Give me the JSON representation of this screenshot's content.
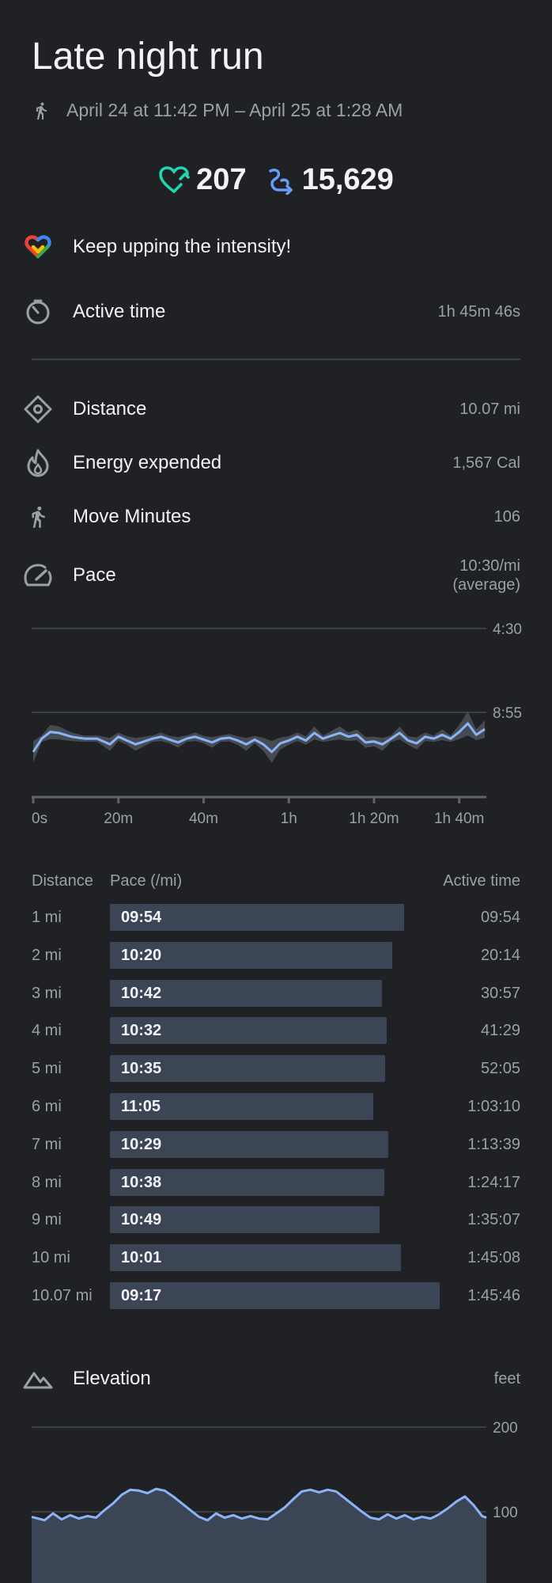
{
  "header": {
    "title": "Late night run",
    "time_range": "April 24 at 11:42 PM – April 25 at 1:28 AM"
  },
  "stats": {
    "heart_points": "207",
    "steps": "15,629"
  },
  "goal_message": "Keep upping the intensity!",
  "metrics": {
    "active_time": {
      "label": "Active time",
      "value": "1h 45m 46s"
    },
    "distance": {
      "label": "Distance",
      "value": "10.07 mi"
    },
    "energy": {
      "label": "Energy expended",
      "value": "1,567 Cal"
    },
    "move_minutes": {
      "label": "Move Minutes",
      "value": "106"
    },
    "pace": {
      "label": "Pace",
      "value_line1": "10:30/mi",
      "value_line2": "(average)"
    }
  },
  "colors": {
    "heart": "#1ed8b2",
    "steps": "#669df6",
    "line": "#8ab4f8",
    "bar": "#3b4556"
  },
  "chart_data": [
    {
      "type": "line",
      "y_tick_labels": [
        "4:30",
        "8:55"
      ],
      "x_tick_labels": [
        "0s",
        "20m",
        "40m",
        "1h",
        "1h 20m",
        "1h 40m"
      ],
      "xlim_minutes": [
        0,
        106
      ],
      "series": [
        {
          "x_minutes": [
            0,
            2,
            4,
            6,
            9,
            12,
            15,
            18,
            20,
            22,
            24,
            26,
            28,
            30,
            32,
            34,
            36,
            38,
            40,
            42,
            44,
            46,
            48,
            50,
            52,
            54,
            56,
            58,
            60,
            62,
            64,
            66,
            68,
            70,
            72,
            74,
            76,
            78,
            80,
            82,
            84,
            86,
            88,
            90,
            92,
            94,
            96,
            98,
            100,
            102,
            104,
            106
          ],
          "pace_min_per_mi": [
            11.0,
            10.3,
            9.95,
            10.0,
            10.2,
            10.3,
            10.3,
            10.6,
            10.2,
            10.4,
            10.6,
            10.45,
            10.3,
            10.2,
            10.35,
            10.5,
            10.3,
            10.2,
            10.35,
            10.5,
            10.3,
            10.25,
            10.4,
            10.6,
            10.35,
            10.6,
            11.0,
            10.55,
            10.4,
            10.2,
            10.4,
            10.0,
            10.3,
            10.15,
            10.0,
            10.2,
            10.1,
            10.5,
            10.45,
            10.6,
            10.3,
            10.0,
            10.4,
            10.55,
            10.2,
            10.3,
            10.1,
            10.3,
            9.95,
            9.5,
            10.1,
            9.8
          ]
        }
      ]
    },
    {
      "type": "bar",
      "columns": [
        "Distance",
        "Pace (/mi)",
        "Active time"
      ],
      "categories": [
        "1 mi",
        "2 mi",
        "3 mi",
        "4 mi",
        "5 mi",
        "6 mi",
        "7 mi",
        "8 mi",
        "9 mi",
        "10 mi",
        "10.07 mi"
      ],
      "pace_labels": [
        "09:54",
        "10:20",
        "10:42",
        "10:32",
        "10:35",
        "11:05",
        "10:29",
        "10:38",
        "10:49",
        "10:01",
        "09:17"
      ],
      "pace_seconds": [
        594,
        620,
        642,
        632,
        635,
        665,
        629,
        638,
        649,
        601,
        557
      ],
      "active_time": [
        "09:54",
        "20:14",
        "30:57",
        "41:29",
        "52:05",
        "1:03:10",
        "1:13:39",
        "1:24:17",
        "1:35:07",
        "1:45:08",
        "1:45:46"
      ]
    },
    {
      "type": "area",
      "title": "Elevation",
      "unit": "feet",
      "y_tick_labels": [
        "200",
        "100"
      ],
      "ylim": [
        0,
        200
      ],
      "series": [
        {
          "x_minutes": [
            0,
            3,
            5,
            7,
            9,
            11,
            13,
            15,
            17,
            19,
            21,
            23,
            25,
            27,
            29,
            31,
            33,
            35,
            37,
            39,
            41,
            43,
            45,
            47,
            49,
            51,
            53,
            55,
            57,
            59,
            61,
            63,
            65,
            67,
            69,
            71,
            73,
            75,
            77,
            79,
            81,
            83,
            85,
            87,
            89,
            91,
            93,
            95,
            97,
            99,
            101,
            103,
            105,
            106
          ],
          "elevation_ft": [
            94,
            90,
            98,
            91,
            96,
            92,
            95,
            93,
            102,
            110,
            120,
            126,
            125,
            122,
            127,
            125,
            118,
            110,
            102,
            94,
            90,
            98,
            93,
            96,
            92,
            95,
            92,
            91,
            98,
            105,
            115,
            124,
            126,
            123,
            126,
            124,
            116,
            108,
            100,
            93,
            91,
            97,
            92,
            96,
            91,
            94,
            92,
            97,
            104,
            112,
            118,
            108,
            95,
            93
          ]
        }
      ]
    }
  ]
}
